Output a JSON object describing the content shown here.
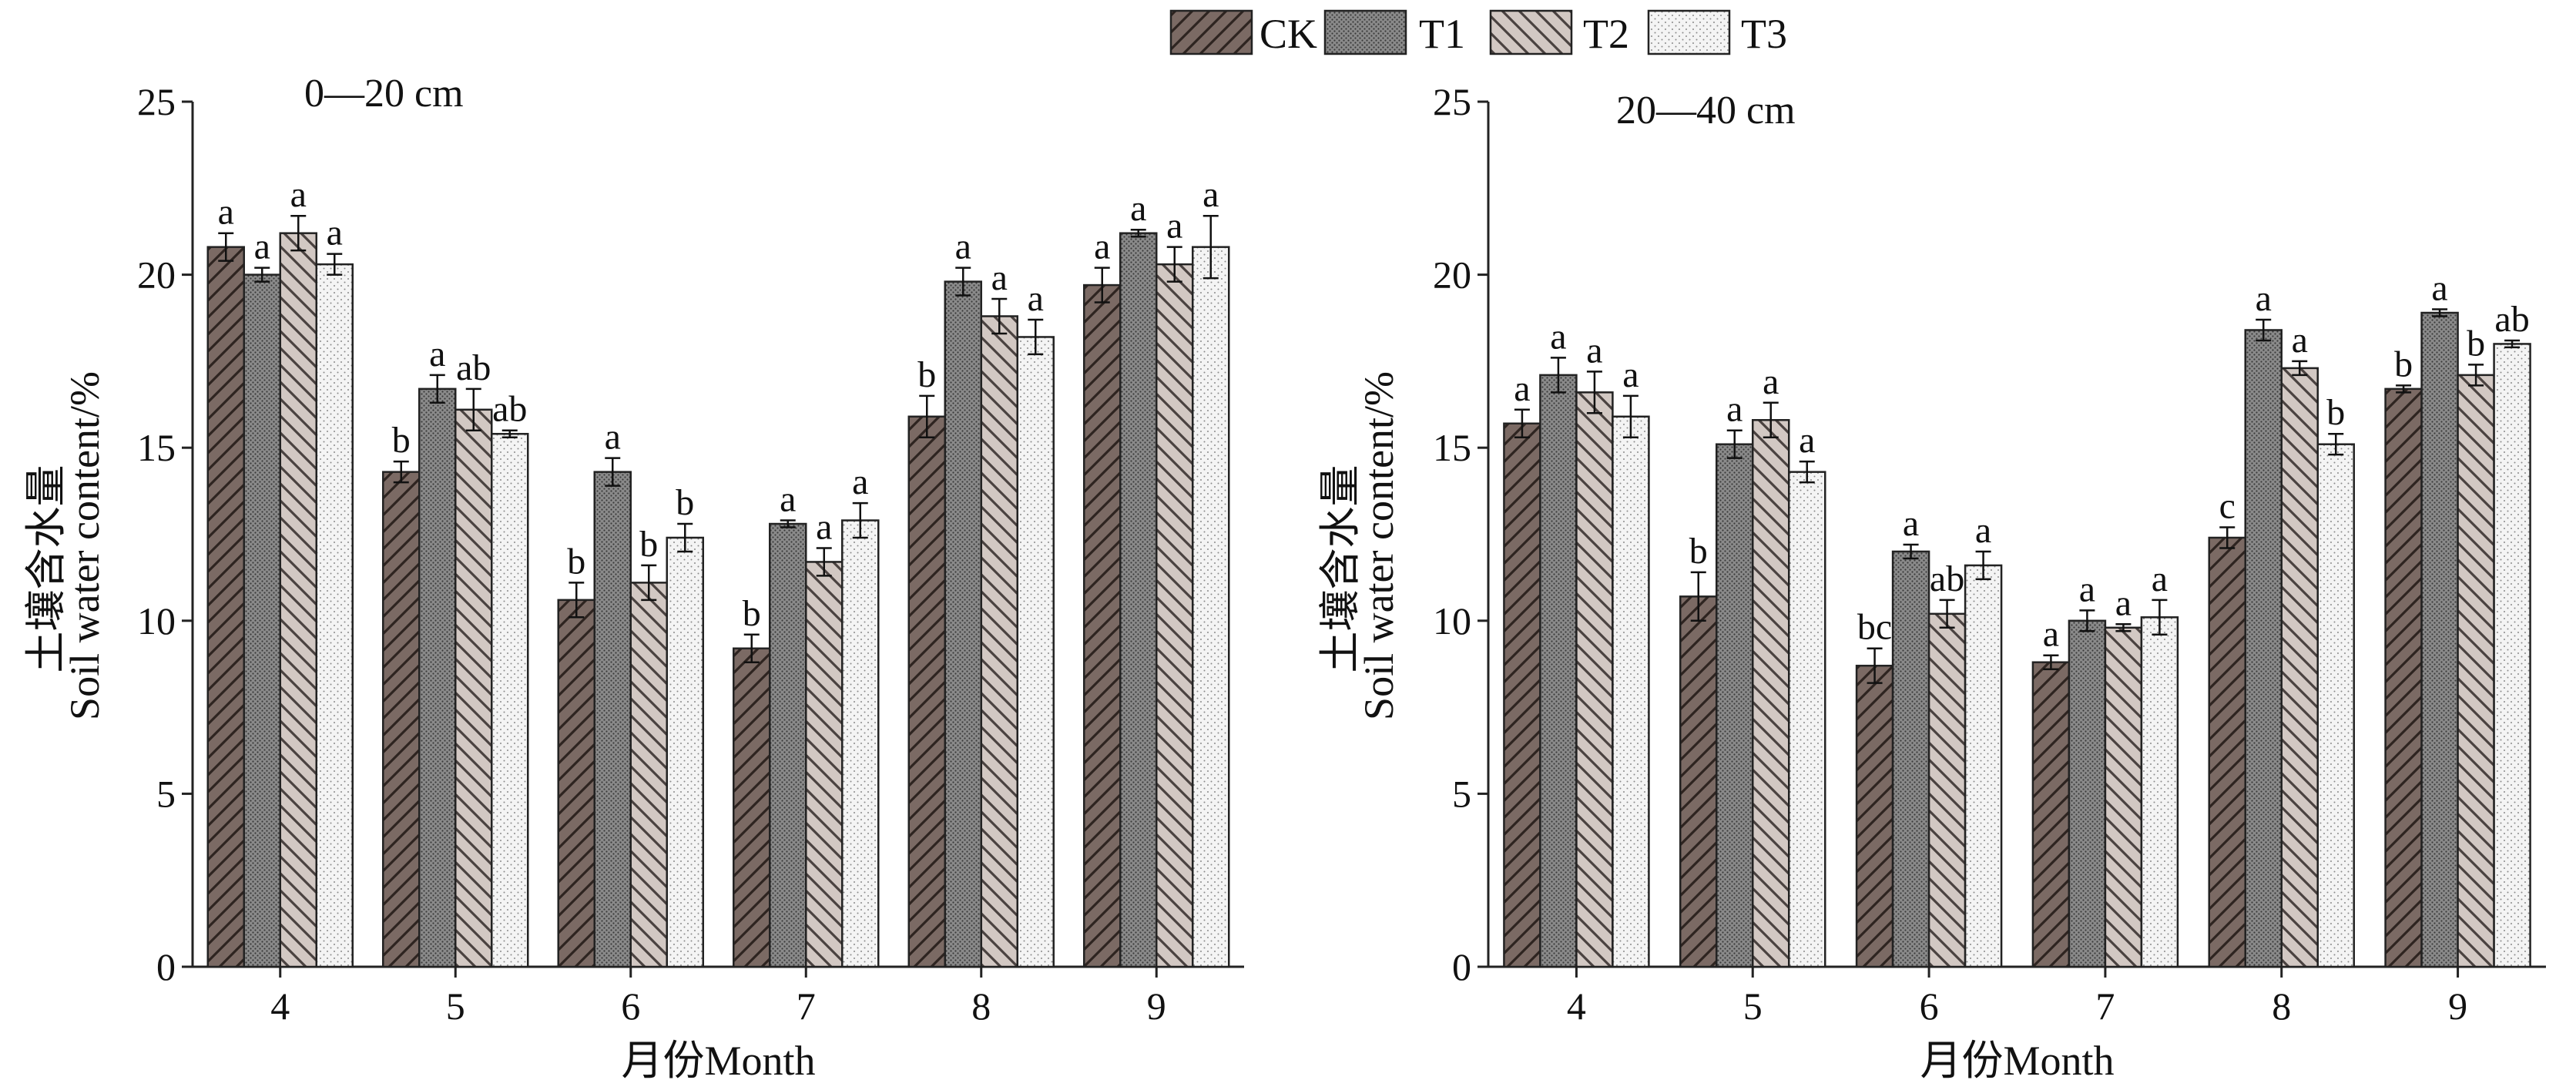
{
  "legend": {
    "entries": [
      {
        "key": "CK",
        "label": "CK"
      },
      {
        "key": "T1",
        "label": "T1"
      },
      {
        "key": "T2",
        "label": "T2"
      },
      {
        "key": "T3",
        "label": "T3"
      }
    ]
  },
  "series_style": {
    "CK": {
      "fill": "#7b6a64",
      "pattern": "diag-right"
    },
    "T1": {
      "fill": "#868686",
      "pattern": "dots-dense"
    },
    "T2": {
      "fill": "#d2c8c3",
      "pattern": "diag-left"
    },
    "T3": {
      "fill": "#f2f2f2",
      "pattern": "dots-sparse"
    }
  },
  "chart_data": [
    {
      "type": "bar",
      "title": "0—20 cm",
      "xlabel": "月份Month",
      "ylabel_cn": "土壤含水量",
      "ylabel_en": "Soil water content/%",
      "ylim": [
        0,
        25
      ],
      "yticks": [
        0,
        5,
        10,
        15,
        20,
        25
      ],
      "categories": [
        "4",
        "5",
        "6",
        "7",
        "8",
        "9"
      ],
      "series": [
        {
          "name": "CK",
          "values": [
            20.8,
            14.3,
            10.6,
            9.2,
            15.9,
            19.7
          ],
          "errors": [
            0.4,
            0.3,
            0.5,
            0.4,
            0.6,
            0.5
          ],
          "labels": [
            "a",
            "b",
            "b",
            "b",
            "b",
            "a"
          ]
        },
        {
          "name": "T1",
          "values": [
            20.0,
            16.7,
            14.3,
            12.8,
            19.8,
            21.2
          ],
          "errors": [
            0.2,
            0.4,
            0.4,
            0.1,
            0.4,
            0.1
          ],
          "labels": [
            "a",
            "a",
            "a",
            "a",
            "a",
            "a"
          ]
        },
        {
          "name": "T2",
          "values": [
            21.2,
            16.1,
            11.1,
            11.7,
            18.8,
            20.3
          ],
          "errors": [
            0.5,
            0.6,
            0.5,
            0.4,
            0.5,
            0.5
          ],
          "labels": [
            "a",
            "ab",
            "b",
            "a",
            "a",
            "a"
          ]
        },
        {
          "name": "T3",
          "values": [
            20.3,
            15.4,
            12.4,
            12.9,
            18.2,
            20.8
          ],
          "errors": [
            0.3,
            0.1,
            0.4,
            0.5,
            0.5,
            0.9
          ],
          "labels": [
            "a",
            "ab",
            "b",
            "a",
            "a",
            "a"
          ]
        }
      ]
    },
    {
      "type": "bar",
      "title": "20—40 cm",
      "xlabel": "月份Month",
      "ylabel_cn": "土壤含水量",
      "ylabel_en": "Soil water content/%",
      "ylim": [
        0,
        25
      ],
      "yticks": [
        0,
        5,
        10,
        15,
        20,
        25
      ],
      "categories": [
        "4",
        "5",
        "6",
        "7",
        "8",
        "9"
      ],
      "series": [
        {
          "name": "CK",
          "values": [
            15.7,
            10.7,
            8.7,
            8.8,
            12.4,
            16.7
          ],
          "errors": [
            0.4,
            0.7,
            0.5,
            0.2,
            0.3,
            0.1
          ],
          "labels": [
            "a",
            "b",
            "bc",
            "a",
            "c",
            "b"
          ]
        },
        {
          "name": "T1",
          "values": [
            17.1,
            15.1,
            12.0,
            10.0,
            18.4,
            18.9
          ],
          "errors": [
            0.5,
            0.4,
            0.2,
            0.3,
            0.3,
            0.1
          ],
          "labels": [
            "a",
            "a",
            "a",
            "a",
            "a",
            "a"
          ]
        },
        {
          "name": "T2",
          "values": [
            16.6,
            15.8,
            10.2,
            9.8,
            17.3,
            17.1
          ],
          "errors": [
            0.6,
            0.5,
            0.4,
            0.1,
            0.2,
            0.3
          ],
          "labels": [
            "a",
            "a",
            "ab",
            "a",
            "a",
            "b"
          ]
        },
        {
          "name": "T3",
          "values": [
            15.9,
            14.3,
            11.6,
            10.1,
            15.1,
            18.0
          ],
          "errors": [
            0.6,
            0.3,
            0.4,
            0.5,
            0.3,
            0.1
          ],
          "labels": [
            "a",
            "a",
            "a",
            "a",
            "b",
            "ab"
          ]
        }
      ]
    }
  ]
}
